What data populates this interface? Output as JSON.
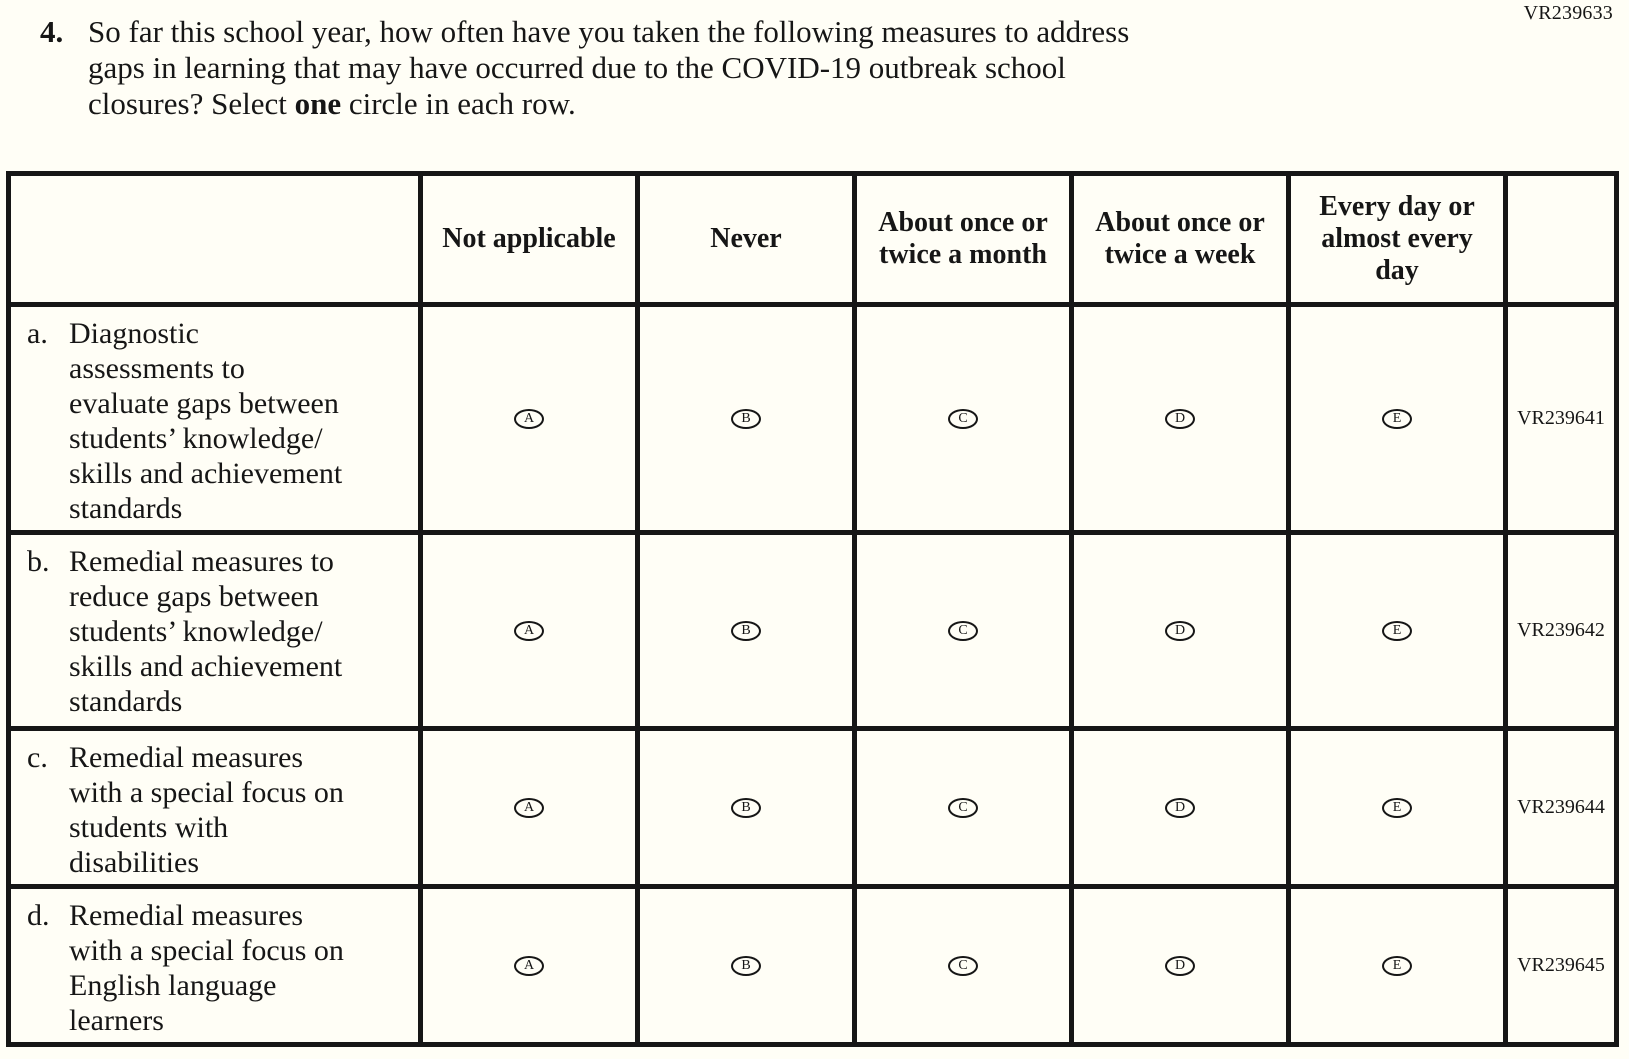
{
  "page": {
    "form_code": "VR239633",
    "ink_color": "#161616",
    "background_color": "#fffef6"
  },
  "question": {
    "number": "4.",
    "line1": "So far this school year, how often have you taken the following measures to address",
    "line2": "gaps in learning that may have occurred due to the COVID-19 outbreak school",
    "line3_prefix": "closures? Select ",
    "line3_bold": "one",
    "line3_suffix": " circle in each row."
  },
  "table": {
    "columns": [
      "",
      "Not applicable",
      "Never",
      "About once or twice a month",
      "About once or twice a week",
      "Every day or almost every day",
      ""
    ],
    "options": [
      "A",
      "B",
      "C",
      "D",
      "E"
    ],
    "rows": [
      {
        "letter": "a.",
        "label": "Diagnostic\nassessments to\nevaluate gaps between\nstudents’ knowledge/\nskills and achievement\nstandards",
        "code": "VR239641"
      },
      {
        "letter": "b.",
        "label": "Remedial measures to\nreduce gaps between\nstudents’ knowledge/\nskills and achievement\nstandards",
        "code": "VR239642"
      },
      {
        "letter": "c.",
        "label": "Remedial measures\nwith a special focus on\nstudents with\ndisabilities",
        "code": "VR239644"
      },
      {
        "letter": "d.",
        "label": "Remedial measures\nwith a special focus on\nEnglish language\nlearners",
        "code": "VR239645"
      }
    ]
  }
}
